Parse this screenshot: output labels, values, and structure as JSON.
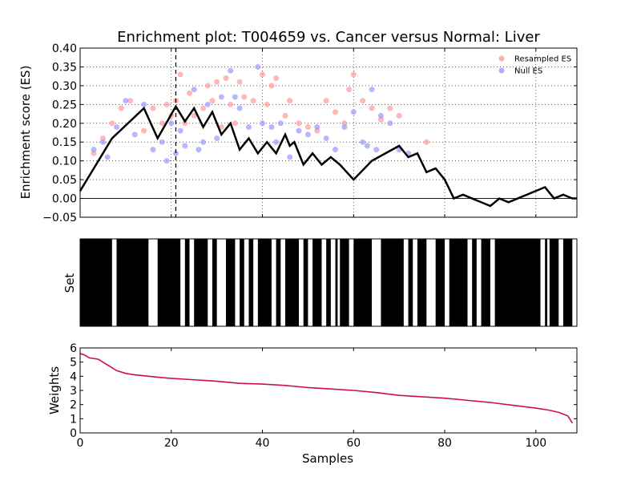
{
  "title": "Enrichment plot: T004659 vs. Cancer versus Normal: Liver",
  "chart_data": [
    {
      "type": "line",
      "panel": "enrichment",
      "ylabel": "Enrichment score (ES)",
      "xlim": [
        0,
        109
      ],
      "ylim": [
        -0.05,
        0.4
      ],
      "yticks": [
        -0.05,
        0.0,
        0.05,
        0.1,
        0.15,
        0.2,
        0.25,
        0.3,
        0.35,
        0.4
      ],
      "ytick_labels": [
        "−0.05",
        "0.00",
        "0.05",
        "0.10",
        "0.15",
        "0.20",
        "0.25",
        "0.30",
        "0.35",
        "0.40"
      ],
      "xticks": [
        0,
        20,
        40,
        60,
        80,
        100
      ],
      "grid": true,
      "legend_position": "top-right",
      "legend": [
        {
          "label": "Resampled ES",
          "color": "#ff9999"
        },
        {
          "label": "Null ES",
          "color": "#9999ff"
        }
      ],
      "vline_x": 21,
      "es_curve": {
        "color": "#000000",
        "x": [
          0,
          7,
          14,
          17,
          21,
          23,
          25,
          27,
          29,
          31,
          33,
          35,
          37,
          39,
          41,
          43,
          45,
          46,
          47,
          49,
          51,
          53,
          55,
          57,
          60,
          64,
          70,
          72,
          74,
          76,
          78,
          80,
          82,
          84,
          86,
          88,
          90,
          92,
          94,
          96,
          98,
          102,
          104,
          106,
          108,
          109
        ],
        "y": [
          0.02,
          0.16,
          0.24,
          0.16,
          0.245,
          0.205,
          0.24,
          0.19,
          0.23,
          0.17,
          0.2,
          0.13,
          0.16,
          0.12,
          0.15,
          0.12,
          0.17,
          0.14,
          0.15,
          0.09,
          0.12,
          0.09,
          0.11,
          0.09,
          0.05,
          0.1,
          0.14,
          0.11,
          0.12,
          0.07,
          0.08,
          0.05,
          0.0,
          0.01,
          0.0,
          -0.01,
          -0.02,
          0.0,
          -0.01,
          0.0,
          0.01,
          0.03,
          0.0,
          0.01,
          0.0,
          0.0
        ]
      },
      "resampled_es": {
        "color": "#ff9999",
        "x": [
          3,
          5,
          7,
          9,
          11,
          14,
          16,
          18,
          19,
          20,
          21,
          22,
          23,
          24,
          25,
          27,
          28,
          29,
          30,
          31,
          32,
          33,
          34,
          35,
          36,
          38,
          40,
          41,
          42,
          43,
          45,
          46,
          48,
          50,
          52,
          54,
          56,
          58,
          59,
          60,
          62,
          64,
          66,
          68,
          70,
          76
        ],
        "y": [
          0.12,
          0.16,
          0.2,
          0.24,
          0.26,
          0.18,
          0.24,
          0.2,
          0.25,
          0.22,
          0.26,
          0.33,
          0.2,
          0.28,
          0.22,
          0.24,
          0.3,
          0.26,
          0.31,
          0.19,
          0.32,
          0.25,
          0.2,
          0.31,
          0.27,
          0.26,
          0.33,
          0.25,
          0.3,
          0.32,
          0.22,
          0.26,
          0.2,
          0.19,
          0.18,
          0.26,
          0.23,
          0.2,
          0.29,
          0.33,
          0.26,
          0.24,
          0.21,
          0.24,
          0.22,
          0.15
        ]
      },
      "null_es": {
        "color": "#9999ff",
        "x": [
          3,
          5,
          6,
          8,
          10,
          12,
          14,
          16,
          18,
          19,
          20,
          21,
          22,
          23,
          25,
          26,
          27,
          28,
          30,
          31,
          33,
          34,
          35,
          37,
          39,
          40,
          42,
          43,
          44,
          46,
          48,
          50,
          52,
          54,
          56,
          58,
          60,
          62,
          63,
          64,
          65,
          66,
          68,
          70,
          72
        ],
        "y": [
          0.13,
          0.15,
          0.11,
          0.19,
          0.26,
          0.17,
          0.25,
          0.13,
          0.15,
          0.1,
          0.2,
          0.12,
          0.18,
          0.14,
          0.29,
          0.13,
          0.15,
          0.25,
          0.16,
          0.27,
          0.34,
          0.27,
          0.24,
          0.19,
          0.35,
          0.2,
          0.19,
          0.15,
          0.2,
          0.11,
          0.18,
          0.17,
          0.19,
          0.16,
          0.13,
          0.19,
          0.23,
          0.15,
          0.14,
          0.29,
          0.13,
          0.22,
          0.2,
          0.13,
          0.12
        ]
      }
    },
    {
      "type": "heatmap",
      "panel": "set",
      "ylabel": "Set",
      "xlim": [
        0,
        109
      ],
      "white_segments": [
        [
          7,
          8
        ],
        [
          15,
          17
        ],
        [
          22,
          23
        ],
        [
          24,
          25
        ],
        [
          28,
          29
        ],
        [
          30,
          32
        ],
        [
          34,
          35
        ],
        [
          36,
          37
        ],
        [
          38,
          39
        ],
        [
          42,
          43
        ],
        [
          44,
          45
        ],
        [
          48,
          49
        ],
        [
          50,
          51
        ],
        [
          53,
          54
        ],
        [
          55,
          56
        ],
        [
          56.5,
          57
        ],
        [
          59,
          60
        ],
        [
          64,
          66
        ],
        [
          71,
          72
        ],
        [
          73,
          74
        ],
        [
          76,
          78
        ],
        [
          80,
          81
        ],
        [
          85,
          86
        ],
        [
          87,
          88
        ],
        [
          90,
          91
        ],
        [
          101,
          102
        ],
        [
          102.5,
          103
        ],
        [
          105,
          106
        ],
        [
          108,
          109
        ]
      ]
    },
    {
      "type": "line",
      "panel": "weights",
      "ylabel": "Weights",
      "xlabel": "Samples",
      "xlim": [
        0,
        109
      ],
      "ylim": [
        0,
        6
      ],
      "yticks": [
        0,
        1,
        2,
        3,
        4,
        5,
        6
      ],
      "xticks": [
        0,
        20,
        40,
        60,
        80,
        100
      ],
      "color": "#cc1144",
      "x": [
        0,
        1,
        2,
        4,
        6,
        8,
        10,
        12,
        15,
        18,
        20,
        25,
        30,
        35,
        40,
        45,
        50,
        55,
        60,
        65,
        70,
        75,
        80,
        85,
        90,
        95,
        100,
        103,
        105,
        107,
        108
      ],
      "y": [
        5.6,
        5.5,
        5.3,
        5.2,
        4.8,
        4.4,
        4.2,
        4.1,
        4.0,
        3.9,
        3.85,
        3.75,
        3.65,
        3.5,
        3.45,
        3.35,
        3.2,
        3.1,
        3.0,
        2.85,
        2.65,
        2.55,
        2.45,
        2.3,
        2.15,
        1.95,
        1.75,
        1.6,
        1.45,
        1.2,
        0.7
      ]
    }
  ]
}
